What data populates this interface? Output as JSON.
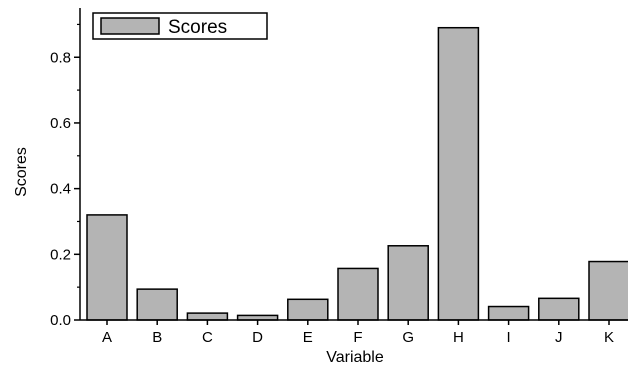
{
  "chart_data": {
    "type": "bar",
    "categories": [
      "A",
      "B",
      "C",
      "D",
      "E",
      "F",
      "G",
      "H",
      "I",
      "J",
      "K"
    ],
    "series": [
      {
        "name": "Scores",
        "values": [
          0.32,
          0.094,
          0.021,
          0.014,
          0.063,
          0.157,
          0.226,
          0.89,
          0.041,
          0.066,
          0.178
        ]
      }
    ],
    "xlabel": "Variable",
    "ylabel": "Scores",
    "ylim": [
      0,
      0.95
    ],
    "yticks": [
      0.0,
      0.2,
      0.4,
      0.6,
      0.8
    ],
    "ytick_labels": [
      "0.0",
      "0.2",
      "0.4",
      "0.6",
      "0.8"
    ],
    "grid": false,
    "legend_position": "top-left",
    "colors": {
      "bar_fill": "#b4b4b4",
      "bar_stroke": "#000000",
      "axis": "#000000"
    }
  }
}
